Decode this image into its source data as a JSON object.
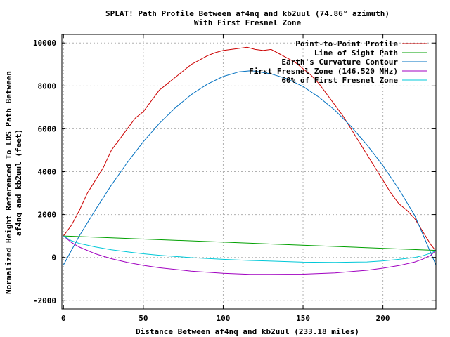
{
  "chart_data": {
    "type": "line",
    "title": "SPLAT! Path Profile Between af4nq and kb2uul (74.86° azimuth)",
    "subtitle": "With First Fresnel Zone",
    "xlabel": "Distance Between af4nq and kb2uul (233.18 miles)",
    "ylabel_line1": "Normalized Height Referenced To LOS Path Between",
    "ylabel_line2": "af4nq and kb2uul (feet)",
    "xlim": [
      -1,
      233.18
    ],
    "ylim": [
      -2400,
      10400
    ],
    "x_ticks": [
      0,
      50,
      100,
      150,
      200
    ],
    "y_ticks": [
      -2000,
      0,
      2000,
      4000,
      6000,
      8000,
      10000
    ],
    "grid": true,
    "legend_position": "top-right",
    "series": [
      {
        "name": "Point-to-Point Profile",
        "color": "#cc0000",
        "x": [
          0,
          5,
          10,
          15,
          20,
          25,
          30,
          35,
          40,
          45,
          50,
          55,
          60,
          65,
          70,
          75,
          80,
          85,
          90,
          95,
          100,
          105,
          110,
          115,
          120,
          125,
          130,
          135,
          140,
          145,
          150,
          155,
          160,
          165,
          170,
          175,
          180,
          185,
          190,
          195,
          200,
          205,
          210,
          215,
          220,
          225,
          230,
          233.18
        ],
        "y": [
          1000,
          1500,
          2200,
          3000,
          3600,
          4200,
          5000,
          5500,
          6000,
          6500,
          6800,
          7300,
          7800,
          8100,
          8400,
          8700,
          9000,
          9200,
          9400,
          9550,
          9650,
          9700,
          9750,
          9800,
          9700,
          9650,
          9700,
          9500,
          9300,
          9100,
          8800,
          8500,
          8100,
          7600,
          7100,
          6600,
          6000,
          5400,
          4800,
          4200,
          3600,
          3000,
          2500,
          2200,
          1800,
          1200,
          600,
          300
        ]
      },
      {
        "name": "Line of Sight Path",
        "color": "#00a000",
        "x": [
          0,
          233.18
        ],
        "y": [
          1000,
          330
        ]
      },
      {
        "name": "Earth's Curvature Contour",
        "color": "#0070c0",
        "x": [
          0,
          10,
          20,
          30,
          40,
          50,
          60,
          70,
          80,
          90,
          100,
          110,
          116.59,
          120,
          130,
          140,
          150,
          160,
          170,
          180,
          190,
          200,
          210,
          220,
          233.18
        ],
        "y": [
          -350,
          1010,
          2220,
          3370,
          4430,
          5400,
          6250,
          6980,
          7590,
          8080,
          8440,
          8660,
          8700,
          8690,
          8560,
          8330,
          7970,
          7470,
          6860,
          6110,
          5250,
          4280,
          3180,
          1940,
          -350
        ]
      },
      {
        "name": "First Fresnel Zone (146.520 MHz)",
        "color": "#a000c0",
        "x": [
          0,
          5,
          10,
          20,
          30,
          40,
          50,
          60,
          80,
          100,
          116.59,
          130,
          150,
          170,
          190,
          200,
          210,
          220,
          225,
          230,
          233.18
        ],
        "y": [
          1000,
          700,
          480,
          170,
          -60,
          -230,
          -370,
          -480,
          -640,
          -740,
          -790,
          -790,
          -780,
          -720,
          -600,
          -500,
          -380,
          -210,
          -80,
          100,
          330
        ]
      },
      {
        "name": "60% of First Fresnel Zone",
        "color": "#00c8d8",
        "x": [
          0,
          5,
          10,
          20,
          30,
          40,
          50,
          60,
          80,
          100,
          116.59,
          130,
          150,
          170,
          190,
          200,
          210,
          220,
          225,
          230,
          233.18
        ],
        "y": [
          1000,
          780,
          650,
          490,
          360,
          260,
          170,
          100,
          -10,
          -90,
          -140,
          -170,
          -220,
          -230,
          -210,
          -160,
          -90,
          0,
          80,
          200,
          330
        ]
      }
    ]
  }
}
